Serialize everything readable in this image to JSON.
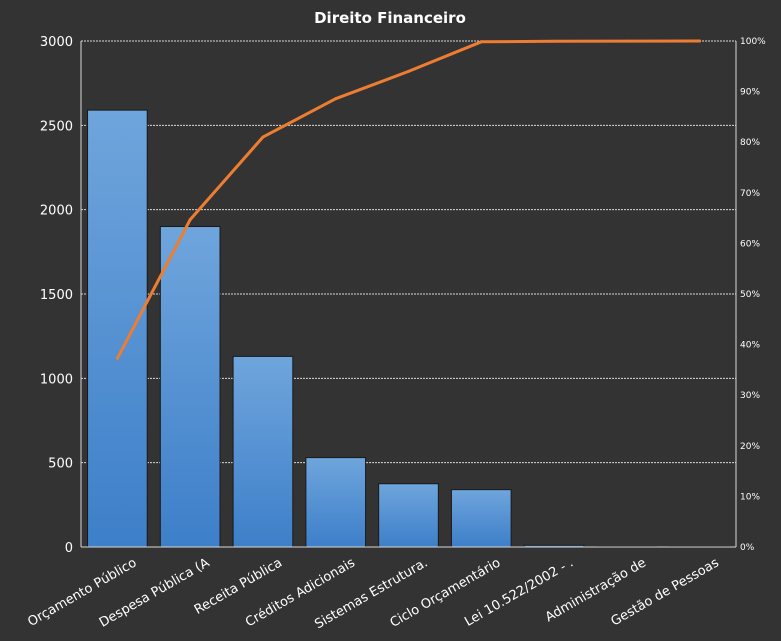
{
  "chart_data": {
    "type": "bar",
    "title": "Direito  Financeiro",
    "categories": [
      "Orçamento Público",
      "Despesa Pública (A",
      "Receita Pública",
      "Créditos Adicionais",
      "Sistemas Estrutura.",
      "Ciclo Orçamentário",
      "Lei 10.522/2002 - .",
      "Administração de",
      "Gestão de Pessoas"
    ],
    "series": [
      {
        "type": "bar",
        "values": [
          2590,
          1900,
          1130,
          530,
          375,
          340,
          10,
          2,
          1
        ]
      },
      {
        "type": "line",
        "axis": "secondary",
        "values": [
          0.373,
          0.647,
          0.81,
          0.886,
          0.94,
          0.9985,
          0.9995,
          0.9998,
          1.0
        ]
      }
    ],
    "yticks": [
      0,
      500,
      1000,
      1500,
      2000,
      2500,
      3000
    ],
    "ylim": [
      0,
      3000
    ],
    "y2ticks": [
      "0%",
      "10%",
      "20%",
      "30%",
      "40%",
      "50%",
      "60%",
      "70%",
      "80%",
      "90%",
      "100%"
    ],
    "y2lim": [
      0,
      1
    ],
    "grid": true,
    "colors": {
      "background": "#333333",
      "bar_top": "#6fa5dc",
      "bar_bottom": "#3d7fc9",
      "line": "#ed7d31",
      "text": "#ffffff",
      "grid": "#d9d9d9"
    }
  }
}
